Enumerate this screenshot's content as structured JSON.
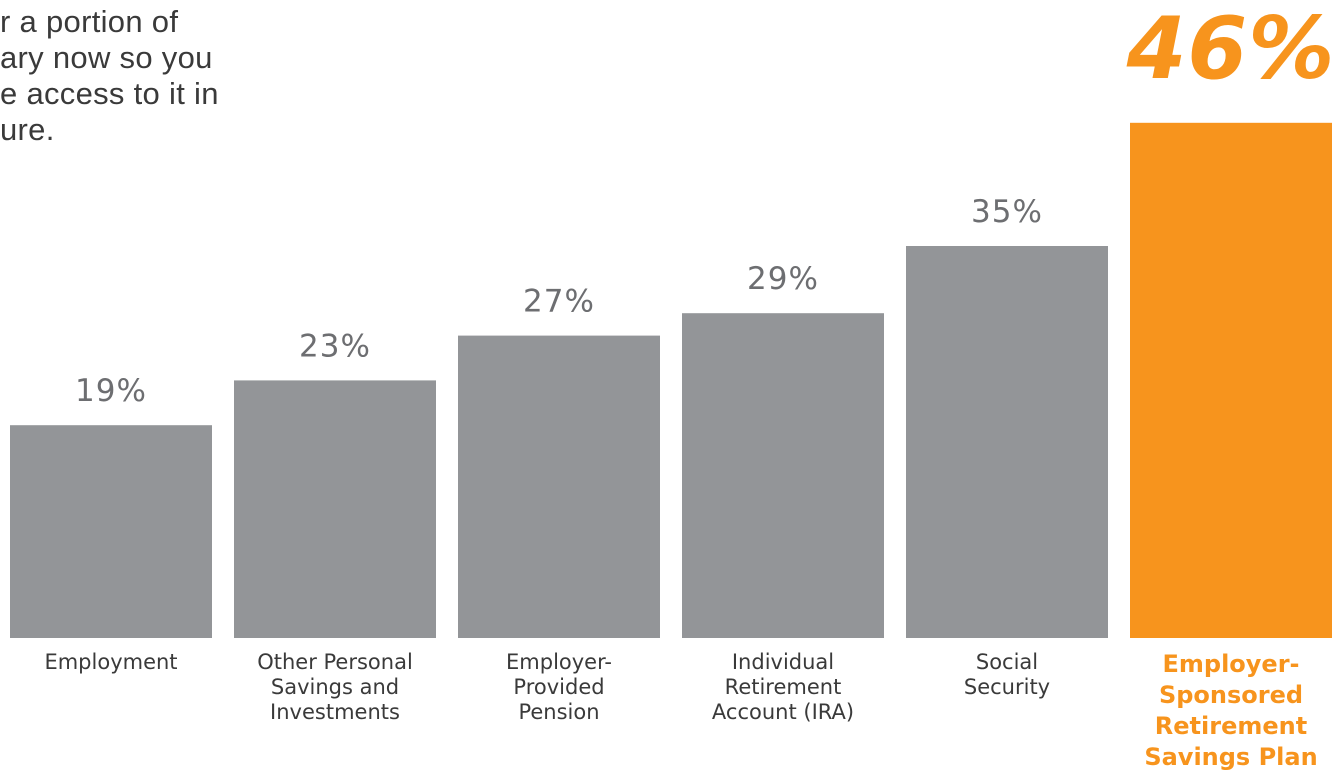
{
  "intro": {
    "lines": [
      "r a portion of",
      "ary now so you",
      "e access to it in",
      "ure."
    ]
  },
  "colors": {
    "bar_default": "#939598",
    "bar_highlight": "#f7941d",
    "value_label": "#6d6e71",
    "category_label": "#3a3a3a",
    "highlight_text": "#f7941d"
  },
  "chart_data": {
    "type": "bar",
    "categories": [
      [
        "Employment"
      ],
      [
        "Other Personal",
        "Savings and",
        "Investments"
      ],
      [
        "Employer-",
        "Provided",
        "Pension"
      ],
      [
        "Individual",
        "Retirement",
        "Account (IRA)"
      ],
      [
        "Social",
        "Security"
      ],
      [
        "Employer-",
        "Sponsored",
        "Retirement",
        "Savings Plan"
      ]
    ],
    "values": [
      19,
      23,
      27,
      29,
      35,
      46
    ],
    "value_labels": [
      "19%",
      "23%",
      "27%",
      "29%",
      "35%",
      "46%"
    ],
    "highlight_index": 5,
    "ylim": [
      0,
      46
    ],
    "grid": false,
    "legend": "none"
  }
}
